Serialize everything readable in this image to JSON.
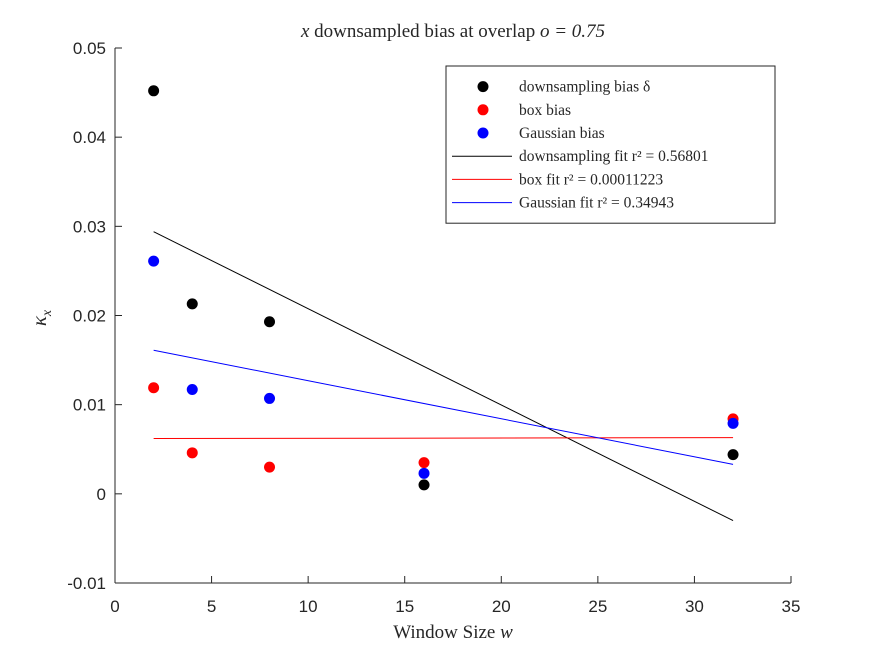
{
  "chart_data": {
    "type": "scatter",
    "title_var": "x",
    "title_text": " downsampled bias at overlap ",
    "title_math": "o = 0.75",
    "xlabel_text": "Window Size ",
    "xlabel_math": "w",
    "ylabel_base": "κ",
    "ylabel_sub": "x",
    "xlim": [
      0,
      35
    ],
    "ylim": [
      -0.01,
      0.05
    ],
    "xticks": [
      0,
      5,
      10,
      15,
      20,
      25,
      30,
      35
    ],
    "xtick_labels": [
      "0",
      "5",
      "10",
      "15",
      "20",
      "25",
      "30",
      "35"
    ],
    "yticks": [
      -0.01,
      0,
      0.01,
      0.02,
      0.03,
      0.04,
      0.05
    ],
    "ytick_labels": [
      "-0.01",
      "0",
      "0.01",
      "0.02",
      "0.03",
      "0.04",
      "0.05"
    ],
    "grid": false,
    "legend_position": "top-right",
    "x": [
      2,
      4,
      8,
      16,
      32
    ],
    "series": [
      {
        "name": "downsampling bias δ",
        "kind": "points",
        "color": "#000000",
        "values": [
          0.0452,
          0.0213,
          0.0193,
          0.001,
          0.0044
        ]
      },
      {
        "name": "box bias",
        "kind": "points",
        "color": "#ff0000",
        "values": [
          0.0119,
          0.0046,
          0.003,
          0.0035,
          0.0084
        ]
      },
      {
        "name": "Gaussian bias",
        "kind": "points",
        "color": "#0000ff",
        "values": [
          0.0261,
          0.0117,
          0.0107,
          0.0023,
          0.0079
        ]
      },
      {
        "name": "downsampling fit r² = 0.56801",
        "kind": "line",
        "color": "#000000",
        "x": [
          2,
          32
        ],
        "values": [
          0.0294,
          -0.003
        ]
      },
      {
        "name": "box fit r² = 0.00011223",
        "kind": "line",
        "color": "#ff0000",
        "x": [
          2,
          32
        ],
        "values": [
          0.0062,
          0.0063
        ]
      },
      {
        "name": "Gaussian fit r² = 0.34943",
        "kind": "line",
        "color": "#0000ff",
        "x": [
          2,
          32
        ],
        "values": [
          0.0161,
          0.0033
        ]
      }
    ]
  }
}
